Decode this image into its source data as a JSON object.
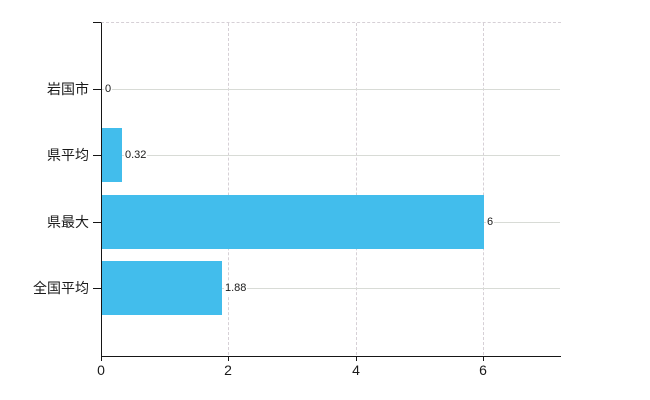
{
  "chart_data": {
    "type": "bar",
    "orientation": "horizontal",
    "title": "",
    "categories": [
      "岩国市",
      "県平均",
      "県最大",
      "全国平均"
    ],
    "values": [
      0,
      0.32,
      6,
      1.88
    ],
    "data_labels": [
      "0",
      "0.32",
      "6",
      "1.88"
    ],
    "x_axis": {
      "tick_labels": [
        "0",
        "2",
        "4",
        "6"
      ],
      "tick_values": [
        0,
        2,
        4,
        6
      ],
      "min": 0,
      "max": 7.2
    },
    "y_axis": {
      "tick_style": "short dash at each category center plus axis top"
    },
    "grid": {
      "horizontal_lines": "solid, one per category center",
      "vertical_lines": "dashed at 2, 4, 6",
      "plot_top_border": "dashed"
    },
    "legend": "none",
    "colors": {
      "bar": "#42bdec",
      "axis": "#161616",
      "grid": "#d8dbd6",
      "grid_dashed": "#d6d0d6",
      "text": "#1a1a1a"
    }
  }
}
